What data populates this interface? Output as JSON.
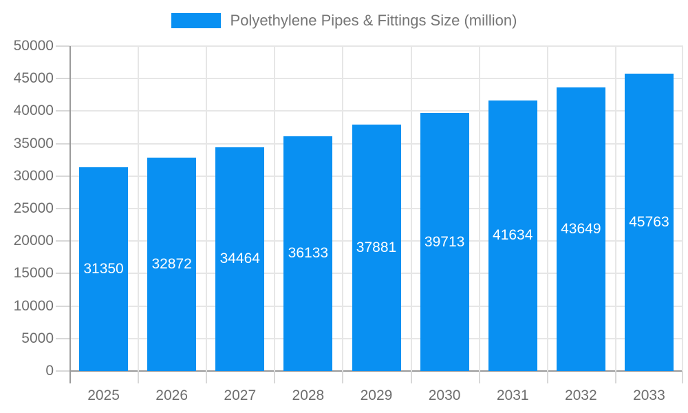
{
  "chart_data": {
    "type": "bar",
    "title": "Polyethylene Pipes & Fittings Size (million)",
    "legend_label": "Polyethylene Pipes & Fittings Size (million)",
    "legend_position": "top",
    "categories": [
      "2025",
      "2026",
      "2027",
      "2028",
      "2029",
      "2030",
      "2031",
      "2032",
      "2033"
    ],
    "values": [
      31350,
      32872,
      34464,
      36133,
      37881,
      39713,
      41634,
      43649,
      45763
    ],
    "bar_labels": [
      "31350",
      "32872",
      "34464",
      "36133",
      "37881",
      "39713",
      "41634",
      "43649",
      "45763"
    ],
    "xlabel": "",
    "ylabel": "",
    "ylim": [
      0,
      50000
    ],
    "y_tick_step": 5000,
    "y_tick_labels": [
      "0",
      "5000",
      "10000",
      "15000",
      "20000",
      "25000",
      "30000",
      "35000",
      "40000",
      "45000",
      "50000"
    ],
    "grid": true,
    "colors": {
      "bar": "#0990F2",
      "bar_label_text": "#FFFFFF",
      "axis_line": "#9A9A9A",
      "gridline": "#E6E6E6",
      "tick": "#D8D8D8",
      "axis_text": "#6E6E6E",
      "legend_text": "#757575",
      "background": "#FFFFFF"
    }
  }
}
